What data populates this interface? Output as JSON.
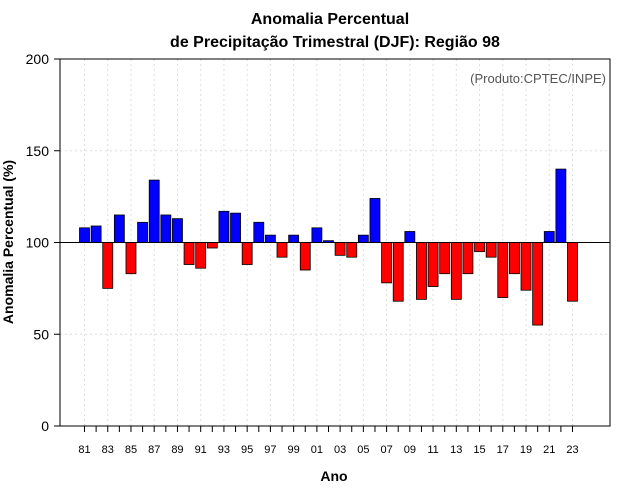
{
  "chart_data": {
    "type": "bar",
    "title": "Anomalia Percentual",
    "subtitle": "de Precipitação Trimestral (DJF): Região 98",
    "xlabel": "Ano",
    "ylabel": "Anomalia Percentual (%)",
    "credit": "(Produto:CPTEC/INPE)",
    "ylim": [
      0,
      200
    ],
    "yticks": [
      "0",
      "50",
      "100",
      "150",
      "200"
    ],
    "baseline": 100,
    "grid": true,
    "colors": {
      "above": "#0000ff",
      "below": "#ff0000",
      "outline": "#000000"
    },
    "tick_labels": [
      "81",
      "83",
      "85",
      "87",
      "89",
      "91",
      "93",
      "95",
      "97",
      "99",
      "01",
      "03",
      "05",
      "07",
      "09",
      "11",
      "13",
      "15",
      "17",
      "19",
      "21",
      "23"
    ],
    "categories": [
      "1981",
      "1982",
      "1983",
      "1984",
      "1985",
      "1986",
      "1987",
      "1988",
      "1989",
      "1990",
      "1991",
      "1992",
      "1993",
      "1994",
      "1995",
      "1996",
      "1997",
      "1998",
      "1999",
      "2000",
      "2001",
      "2002",
      "2003",
      "2004",
      "2005",
      "2006",
      "2007",
      "2008",
      "2009",
      "2010",
      "2011",
      "2012",
      "2013",
      "2014",
      "2015",
      "2016",
      "2017",
      "2018",
      "2019",
      "2020",
      "2021",
      "2022",
      "2023"
    ],
    "values": [
      108,
      109,
      75,
      115,
      83,
      111,
      134,
      115,
      113,
      88,
      86,
      97,
      117,
      116,
      88,
      111,
      104,
      92,
      104,
      85,
      108,
      101,
      93,
      92,
      104,
      124,
      78,
      68,
      106,
      69,
      76,
      83,
      69,
      83,
      95,
      92,
      70,
      83,
      74,
      55,
      106,
      140,
      68
    ]
  }
}
